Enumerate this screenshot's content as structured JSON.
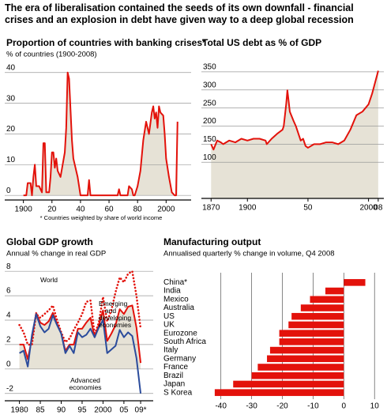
{
  "title": "The era of liberalisation contained the seeds of its own downfall - financial crises and an explosion in debt have given way to a deep global recession",
  "chart_data": [
    {
      "type": "line",
      "title": "Proportion of countries with banking crises*",
      "subtitle": "% of countries (1900-2008)",
      "note": "* Countries weighted by share of world income",
      "x": [
        1900,
        1902,
        1903,
        1905,
        1906,
        1907,
        1908,
        1909,
        1911,
        1913,
        1914,
        1915,
        1916,
        1918,
        1919,
        1920,
        1921,
        1922,
        1923,
        1924,
        1926,
        1929,
        1930,
        1931,
        1932,
        1933,
        1934,
        1935,
        1936,
        1937,
        1938,
        1939,
        1940,
        1945,
        1946,
        1947,
        1950,
        1960,
        1966,
        1967,
        1968,
        1973,
        1974,
        1976,
        1977,
        1978,
        1980,
        1982,
        1984,
        1986,
        1988,
        1990,
        1991,
        1992,
        1993,
        1994,
        1995,
        1996,
        1998,
        1999,
        2000,
        2002,
        2004,
        2006,
        2007,
        2008
      ],
      "series": [
        {
          "color": "#e3120b",
          "fill_color": "#e6e2d6",
          "values": [
            0,
            0,
            4,
            4,
            0,
            6,
            10,
            3,
            3,
            1,
            17,
            17,
            1,
            1,
            6,
            14,
            14,
            9,
            12,
            8,
            6,
            14,
            22,
            40,
            38,
            28,
            18,
            12,
            10,
            8,
            6,
            3,
            0,
            0,
            5,
            0,
            0,
            0,
            0,
            2,
            0,
            0,
            3,
            2,
            0,
            0,
            3,
            8,
            18,
            24,
            20,
            27,
            29,
            25,
            27,
            22,
            29,
            27,
            26,
            20,
            12,
            6,
            1,
            0,
            0,
            24
          ]
        }
      ],
      "xlim": [
        1893,
        2012
      ],
      "xticks": [
        1900,
        {
          "value": 1920,
          "label": "20"
        },
        {
          "value": 1940,
          "label": "40"
        },
        {
          "value": 1960,
          "label": "60"
        },
        {
          "value": 1980,
          "label": "80"
        },
        2000
      ],
      "ylim": [
        -1.5,
        42
      ],
      "yticks": [
        0,
        10,
        20,
        30,
        40
      ],
      "grid": true
    },
    {
      "type": "line",
      "title": "Total US debt as % of GDP",
      "x": [
        1870,
        1872,
        1875,
        1878,
        1880,
        1885,
        1890,
        1895,
        1900,
        1905,
        1910,
        1915,
        1916,
        1920,
        1925,
        1929,
        1930,
        1932,
        1933,
        1934,
        1935,
        1938,
        1940,
        1944,
        1946,
        1948,
        1950,
        1955,
        1960,
        1965,
        1970,
        1975,
        1980,
        1985,
        1990,
        1995,
        2000,
        2003,
        2005,
        2007,
        2008
      ],
      "series": [
        {
          "color": "#e3120b",
          "fill_color": "#e6e2d6",
          "values": [
            150,
            135,
            160,
            155,
            150,
            160,
            155,
            165,
            160,
            165,
            165,
            160,
            150,
            165,
            180,
            190,
            200,
            260,
            299,
            270,
            240,
            215,
            200,
            160,
            165,
            145,
            140,
            150,
            150,
            155,
            155,
            150,
            160,
            190,
            230,
            240,
            260,
            290,
            315,
            340,
            353
          ]
        }
      ],
      "xlim": [
        1862,
        2012
      ],
      "xticks": [
        1870,
        1900,
        {
          "value": 1950,
          "label": "50"
        },
        2000,
        {
          "value": 2008,
          "label": "08"
        }
      ],
      "ylim": [
        0,
        365
      ],
      "yticks": [
        100,
        150,
        200,
        250,
        300,
        350
      ],
      "grid": true
    },
    {
      "type": "line",
      "title": "Global GDP growth",
      "subtitle": "Annual % change in real GDP",
      "x": [
        1980,
        1981,
        1982,
        1983,
        1984,
        1985,
        1986,
        1987,
        1988,
        1989,
        1990,
        1991,
        1992,
        1993,
        1994,
        1995,
        1996,
        1997,
        1998,
        1999,
        2000,
        2001,
        2002,
        2003,
        2004,
        2005,
        2006,
        2007,
        2008,
        2009
      ],
      "series": [
        {
          "name": "World",
          "color": "#e3120b",
          "fill_color": "#e6e2d6",
          "values": [
            2.0,
            2.0,
            0.8,
            2.5,
            4.6,
            3.8,
            3.6,
            3.9,
            4.6,
            3.7,
            2.9,
            1.5,
            2.0,
            2.0,
            3.3,
            3.3,
            3.8,
            4.2,
            2.6,
            3.6,
            4.8,
            2.3,
            2.9,
            3.6,
            4.9,
            4.5,
            5.1,
            5.2,
            3.4,
            0.5
          ]
        },
        {
          "name": "Emerging and developing economies",
          "color": "#e3120b",
          "dash": "dotted",
          "values": [
            3.6,
            3.0,
            2.0,
            2.0,
            4.5,
            4.2,
            4.5,
            4.8,
            5.2,
            4.0,
            3.0,
            2.2,
            2.5,
            3.2,
            3.8,
            4.5,
            5.5,
            5.6,
            2.8,
            3.8,
            5.9,
            3.9,
            4.8,
            6.3,
            7.5,
            7.1,
            7.8,
            8.0,
            6.0,
            3.3
          ]
        },
        {
          "name": "Advanced economies",
          "color": "#2b4c9c",
          "values": [
            1.3,
            1.5,
            0.2,
            2.8,
            4.5,
            3.5,
            3.0,
            3.3,
            4.4,
            3.6,
            2.9,
            1.3,
            1.9,
            1.3,
            3.0,
            2.6,
            2.8,
            3.3,
            2.6,
            3.4,
            4.0,
            1.3,
            1.6,
            1.9,
            3.2,
            2.6,
            3.0,
            2.7,
            0.9,
            -2.0
          ]
        }
      ],
      "xlim": [
        1978,
        2010.5
      ],
      "xticks": [
        1980,
        {
          "value": 1985,
          "label": "85"
        },
        {
          "value": 1990,
          "label": "90"
        },
        {
          "value": 1995,
          "label": "95"
        },
        2000,
        {
          "value": 2005,
          "label": "05"
        },
        {
          "value": 2009,
          "label": "09*"
        }
      ],
      "ylim": [
        -2.6,
        8.4
      ],
      "yticks": [
        -2,
        0,
        2,
        4,
        6,
        8
      ],
      "grid": true
    },
    {
      "type": "hbar",
      "title": "Manufacturing output",
      "subtitle": "Annualised quarterly % change in volume, Q4 2008",
      "categories": [
        "China*",
        "India",
        "Mexico",
        "Australia",
        "US",
        "UK",
        "Eurozone",
        "South Africa",
        "Italy",
        "Germany",
        "France",
        "Brazil",
        "Japan",
        "S Korea"
      ],
      "values": [
        7,
        -6,
        -11,
        -14,
        -17,
        -18,
        -21,
        -21,
        -24,
        -25,
        -28,
        -30,
        -36,
        -42
      ],
      "color": "#e3120b",
      "xlim": [
        -43,
        12
      ],
      "xticks": [
        -40,
        -30,
        -20,
        -10,
        0,
        10
      ],
      "grid": true
    }
  ]
}
